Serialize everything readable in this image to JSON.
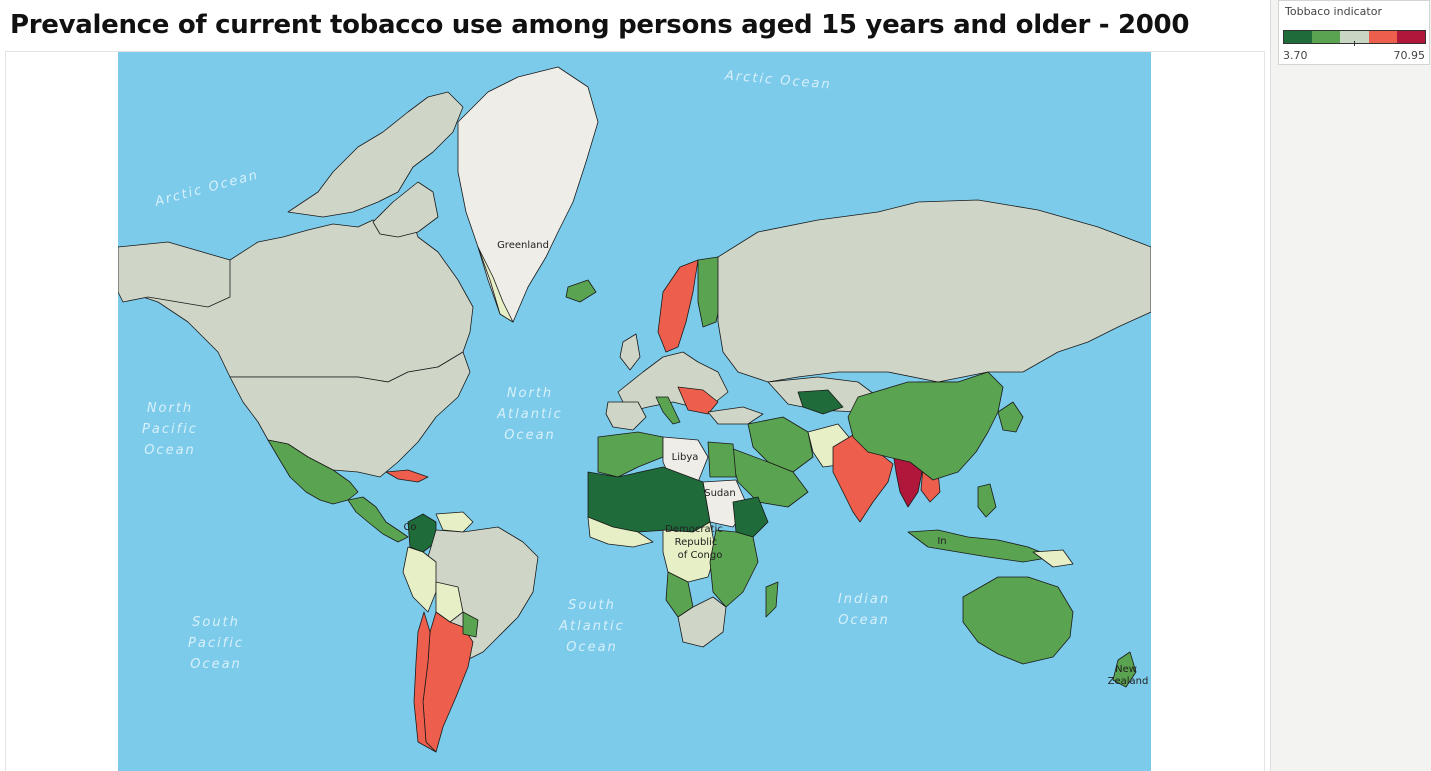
{
  "title": "Prevalence of current tobacco use among persons aged 15 years and older - 2000",
  "legend": {
    "title": "Tobbaco indicator",
    "min": "3.70",
    "max": "70.95",
    "colors": [
      "#1f6b3a",
      "#5aa350",
      "#c9d6c4",
      "#ee5e4c",
      "#b0173a"
    ]
  },
  "ocean_labels": [
    {
      "name": "arctic-ocean-label-east",
      "lines": [
        "Arctic Ocean"
      ]
    },
    {
      "name": "arctic-ocean-label-west",
      "lines": [
        "Arctic Ocean"
      ]
    },
    {
      "name": "north-atlantic-ocean-label",
      "lines": [
        "North",
        "Atlantic",
        "Ocean"
      ]
    },
    {
      "name": "north-pacific-ocean-label",
      "lines": [
        "North",
        "Pacific",
        "Ocean"
      ]
    },
    {
      "name": "south-atlantic-ocean-label",
      "lines": [
        "South",
        "Atlantic",
        "Ocean"
      ]
    },
    {
      "name": "indian-ocean-label",
      "lines": [
        "Indian",
        "Ocean"
      ]
    },
    {
      "name": "south-pacific-ocean-label",
      "lines": [
        "South",
        "Pacific",
        "Ocean"
      ]
    }
  ],
  "country_labels": {
    "greenland": "Greenland",
    "libya": "Libya",
    "sudan": "Sudan",
    "drc": [
      "Democratic",
      "Republic",
      "of Congo"
    ],
    "colombia": "Co",
    "indonesia": "In",
    "new_zealand": [
      "New",
      "Zealand"
    ]
  },
  "map_colors": {
    "ocean": "#7ccbeb",
    "no_data_gray": "#cfd6c7",
    "dark_green": "#1f6b3a",
    "green": "#5aa350",
    "pale_yellow": "#e6efc6",
    "light_gray": "#eeede8",
    "salmon": "#ee5e4c",
    "crimson": "#b0173a"
  }
}
